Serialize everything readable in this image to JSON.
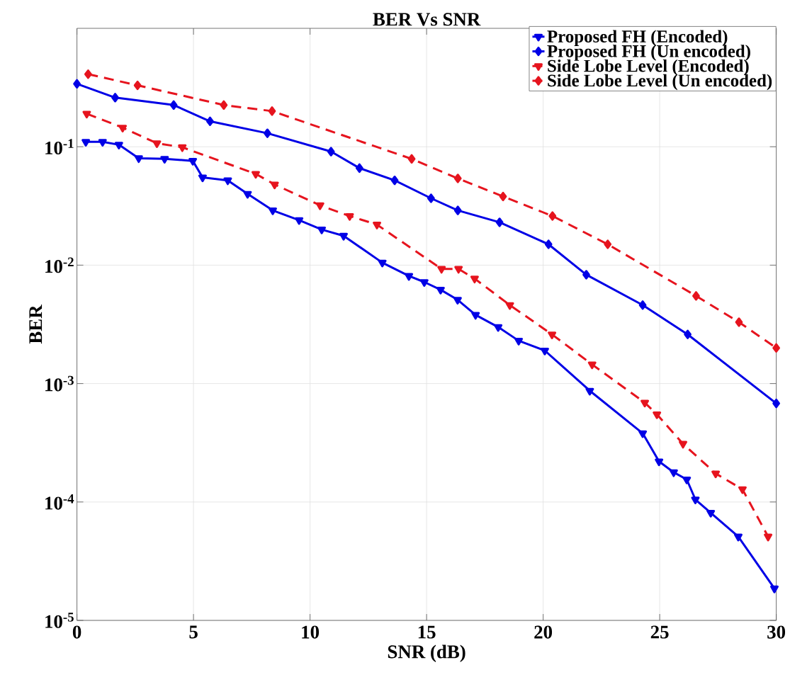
{
  "chart_data": {
    "type": "line",
    "title": "BER Vs SNR",
    "xlabel": "SNR (dB)",
    "ylabel": "BER",
    "log": "y",
    "grid": true,
    "legend": "top right",
    "xlim": [
      0,
      30
    ],
    "xticks": [
      0,
      5,
      10,
      15,
      20,
      25,
      30
    ],
    "ylim": [
      1e-05,
      1
    ],
    "yticks": [
      {
        "value": 1e-05,
        "label": "10$^{-5}$"
      },
      {
        "value": 0.0001,
        "label": "10$^{-4}$"
      },
      {
        "value": 0.001,
        "label": "10$^{-3}$"
      },
      {
        "value": 0.01,
        "label": "10$^{-2}$"
      },
      {
        "value": 0.1,
        "label": "10$^{-1}$"
      }
    ],
    "series": [
      {
        "name": "Proposed FH (Encoded)",
        "color": "#0000e6",
        "marker": "triangle",
        "line_style": "solid",
        "x": [
          0.38,
          1.1,
          1.8,
          2.65,
          3.76,
          4.97,
          5.39,
          6.47,
          7.32,
          8.4,
          9.53,
          10.5,
          11.44,
          13.1,
          14.24,
          14.9,
          15.6,
          16.33,
          17.1,
          18.07,
          18.95,
          20.07,
          22.0,
          24.27,
          24.97,
          25.6,
          26.16,
          26.53,
          27.19,
          28.37,
          29.92
        ],
        "values": [
          0.11,
          0.11,
          0.104,
          0.08,
          0.079,
          0.076,
          0.055,
          0.052,
          0.04,
          0.029,
          0.024,
          0.02,
          0.0177,
          0.0105,
          0.0081,
          0.0072,
          0.0062,
          0.0051,
          0.0038,
          0.003,
          0.0023,
          0.0019,
          0.00087,
          0.00038,
          0.00022,
          0.000178,
          0.000155,
          0.000105,
          8.1e-05,
          5.1e-05,
          1.86e-05
        ]
      },
      {
        "name": "Proposed FH (Un encoded)",
        "color": "#0000e6",
        "marker": "diamond",
        "line_style": "solid",
        "x": [
          0.0,
          1.64,
          4.15,
          5.71,
          8.17,
          10.9,
          12.12,
          13.63,
          15.19,
          16.34,
          18.13,
          20.23,
          21.85,
          24.27,
          26.2,
          30
        ],
        "values": [
          0.34,
          0.26,
          0.225,
          0.164,
          0.13,
          0.091,
          0.066,
          0.052,
          0.0367,
          0.029,
          0.023,
          0.015,
          0.0083,
          0.0046,
          0.0026,
          0.00068
        ]
      },
      {
        "name": "Side Lobe Level (Encoded)",
        "color": "#e6141e",
        "marker": "triangle",
        "line_style": "dashed",
        "x": [
          0.42,
          1.96,
          3.43,
          4.52,
          7.67,
          8.48,
          10.43,
          11.7,
          12.87,
          15.64,
          16.37,
          17.06,
          18.57,
          20.38,
          22.1,
          24.36,
          24.88,
          26.0,
          27.4,
          28.55,
          29.65
        ],
        "values": [
          0.19,
          0.145,
          0.107,
          0.099,
          0.059,
          0.048,
          0.032,
          0.026,
          0.022,
          0.0093,
          0.0093,
          0.0077,
          0.0046,
          0.0026,
          0.00145,
          0.00069,
          0.00055,
          0.00031,
          0.000174,
          0.000128,
          5.1e-05
        ]
      },
      {
        "name": "Side Lobe Level (Un encoded)",
        "color": "#e6141e",
        "marker": "diamond",
        "line_style": "dashed",
        "x": [
          0.48,
          2.6,
          6.3,
          8.37,
          14.36,
          16.34,
          18.28,
          20.4,
          22.77,
          26.56,
          28.4,
          30
        ],
        "values": [
          0.41,
          0.33,
          0.225,
          0.2,
          0.079,
          0.054,
          0.038,
          0.026,
          0.015,
          0.0055,
          0.0033,
          0.002
        ]
      }
    ]
  }
}
